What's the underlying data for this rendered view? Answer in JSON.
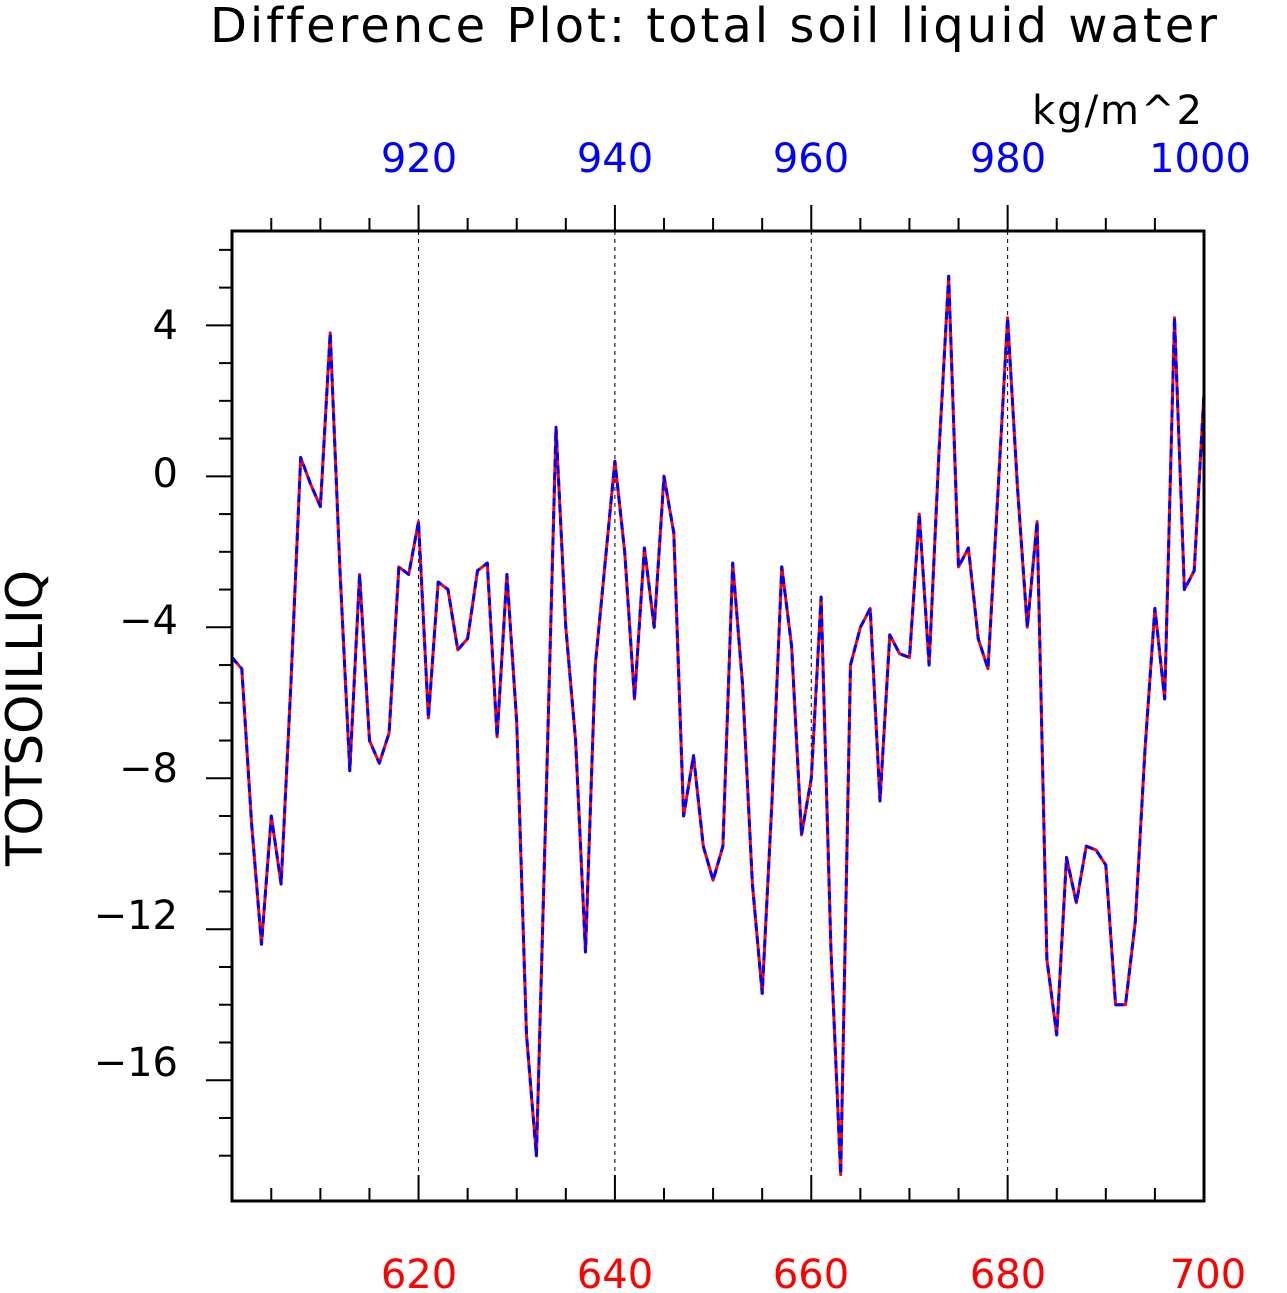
{
  "chart_data": {
    "type": "line",
    "title": "Difference Plot: total soil liquid water",
    "units": "kg/m^2",
    "ylabel": "TOTSOILLIQ",
    "xlim": [
      601,
      700
    ],
    "ylim": [
      -19.2,
      6.5
    ],
    "grid": "vertical dashed at major x ticks",
    "x_bottom_ticks": [
      "620",
      "640",
      "660",
      "680",
      "700"
    ],
    "x_top_ticks": [
      "920",
      "940",
      "960",
      "980",
      "1000"
    ],
    "y_ticks": [
      "4",
      "0",
      "−4",
      "−8",
      "−12",
      "−16"
    ],
    "bottom_tick_color": "#ff0000",
    "top_tick_color": "#0000ff",
    "series": [
      {
        "line_color": "#ff0000",
        "style": "solid",
        "x": [
          601,
          602,
          603,
          604,
          605,
          606,
          607,
          608,
          609,
          610,
          611,
          612,
          613,
          614,
          615,
          616,
          617,
          618,
          619,
          620,
          621,
          622,
          623,
          624,
          625,
          626,
          627,
          628,
          629,
          630,
          631,
          632,
          633,
          634,
          635,
          636,
          637,
          638,
          639,
          640,
          641,
          642,
          643,
          644,
          645,
          646,
          647,
          648,
          649,
          650,
          651,
          652,
          653,
          654,
          655,
          656,
          657,
          658,
          659,
          660,
          661,
          662,
          663,
          664,
          665,
          666,
          667,
          668,
          669,
          670,
          671,
          672,
          673,
          674,
          675,
          676,
          677,
          678,
          679,
          680,
          681,
          682,
          683,
          684,
          685,
          686,
          687,
          688,
          689,
          690,
          691,
          692,
          693,
          694,
          695,
          696,
          697,
          698,
          699,
          700
        ],
        "y": [
          -4.8,
          -5.1,
          -9.2,
          -12.4,
          -9,
          -10.8,
          -5.5,
          0.5,
          -0.2,
          -0.8,
          3.8,
          -2.5,
          -7.8,
          -2.6,
          -7,
          -7.6,
          -6.8,
          -2.4,
          -2.6,
          -1.2,
          -6.4,
          -2.8,
          -3,
          -4.6,
          -4.3,
          -2.5,
          -2.3,
          -6.9,
          -2.6,
          -6.5,
          -14.8,
          -18,
          -8.5,
          1.3,
          -4,
          -7,
          -12.6,
          -5,
          -2.3,
          0.4,
          -2,
          -5.9,
          -1.9,
          -4,
          0,
          -1.5,
          -9,
          -7.4,
          -9.8,
          -10.7,
          -9.8,
          -2.3,
          -5.5,
          -10.8,
          -13.7,
          -8.6,
          -2.4,
          -4.5,
          -9.5,
          -8,
          -3.2,
          -12.5,
          -18.5,
          -5,
          -4,
          -3.5,
          -8.6,
          -4.2,
          -4.7,
          -4.8,
          -1,
          -5,
          0.6,
          5.3,
          -2.4,
          -1.9,
          -4.3,
          -5.1,
          -0.5,
          4.2,
          -0.3,
          -4,
          -1.2,
          -12.8,
          -14.8,
          -10.1,
          -11.3,
          -9.8,
          -9.9,
          -10.3,
          -14,
          -14,
          -11.8,
          -7.2,
          -3.5,
          -5.9,
          4.2,
          -3,
          -2.5,
          2.2
        ]
      },
      {
        "line_color": "#0000ff",
        "style": "dashed",
        "x": [
          601,
          602,
          603,
          604,
          605,
          606,
          607,
          608,
          609,
          610,
          611,
          612,
          613,
          614,
          615,
          616,
          617,
          618,
          619,
          620,
          621,
          622,
          623,
          624,
          625,
          626,
          627,
          628,
          629,
          630,
          631,
          632,
          633,
          634,
          635,
          636,
          637,
          638,
          639,
          640,
          641,
          642,
          643,
          644,
          645,
          646,
          647,
          648,
          649,
          650,
          651,
          652,
          653,
          654,
          655,
          656,
          657,
          658,
          659,
          660,
          661,
          662,
          663,
          664,
          665,
          666,
          667,
          668,
          669,
          670,
          671,
          672,
          673,
          674,
          675,
          676,
          677,
          678,
          679,
          680,
          681,
          682,
          683,
          684,
          685,
          686,
          687,
          688,
          689,
          690,
          691,
          692,
          693,
          694,
          695,
          696,
          697,
          698,
          699,
          700
        ],
        "y": [
          -4.8,
          -5.1,
          -9.2,
          -12.4,
          -9,
          -10.8,
          -5.5,
          0.5,
          -0.2,
          -0.8,
          3.8,
          -2.5,
          -7.8,
          -2.6,
          -7,
          -7.6,
          -6.8,
          -2.4,
          -2.6,
          -1.2,
          -6.4,
          -2.8,
          -3,
          -4.6,
          -4.3,
          -2.5,
          -2.3,
          -6.9,
          -2.6,
          -6.5,
          -14.8,
          -18,
          -8.5,
          1.3,
          -4,
          -7,
          -12.6,
          -5,
          -2.3,
          0.4,
          -2,
          -5.9,
          -1.9,
          -4,
          0,
          -1.5,
          -9,
          -7.4,
          -9.8,
          -10.7,
          -9.8,
          -2.3,
          -5.5,
          -10.8,
          -13.7,
          -8.6,
          -2.4,
          -4.5,
          -9.5,
          -8,
          -3.2,
          -12.5,
          -18.5,
          -5,
          -4,
          -3.5,
          -8.6,
          -4.2,
          -4.7,
          -4.8,
          -1,
          -5,
          0.6,
          5.3,
          -2.4,
          -1.9,
          -4.3,
          -5.1,
          -0.5,
          4.2,
          -0.3,
          -4,
          -1.2,
          -12.8,
          -14.8,
          -10.1,
          -11.3,
          -9.8,
          -9.9,
          -10.3,
          -14,
          -14,
          -11.8,
          -7.2,
          -3.5,
          -5.9,
          4.2,
          -3,
          -2.5,
          2.2
        ]
      }
    ]
  }
}
